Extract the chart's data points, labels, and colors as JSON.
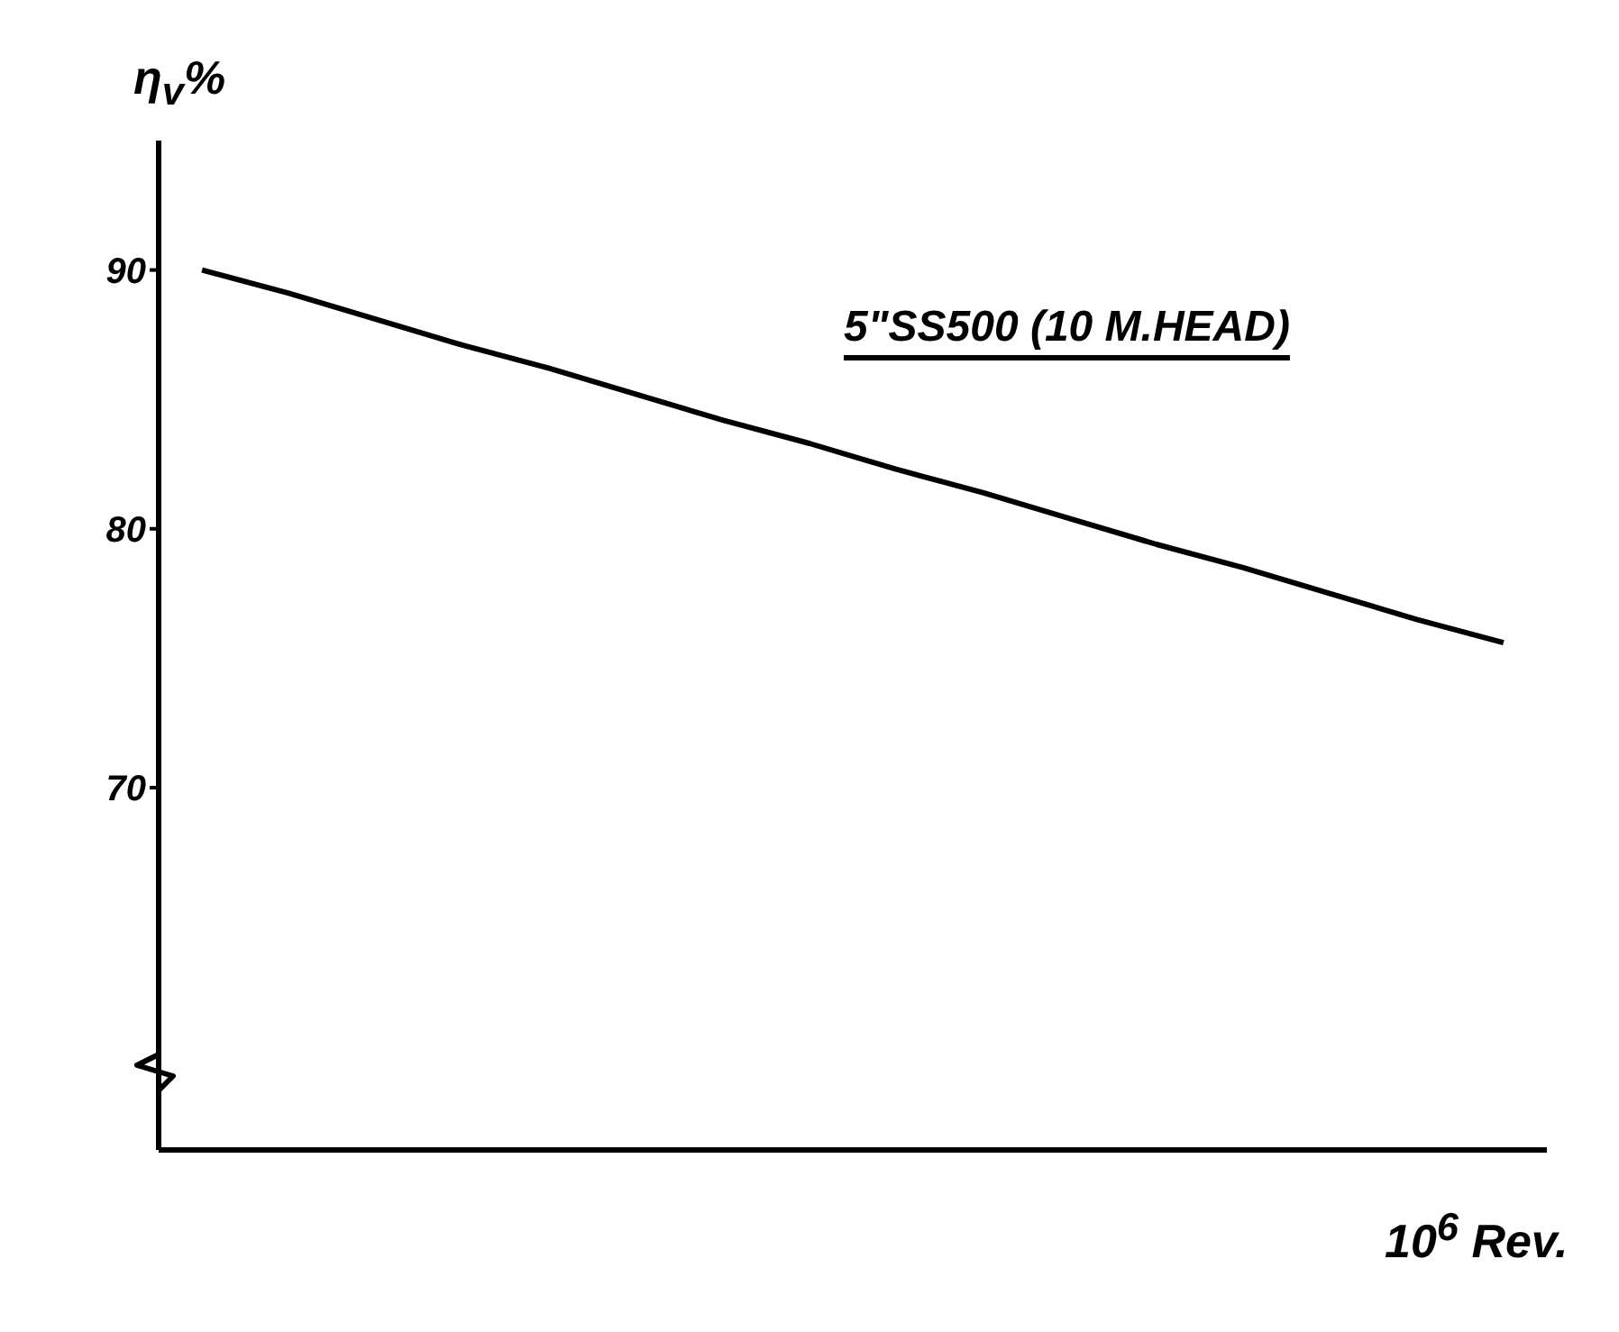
{
  "chart_data": {
    "type": "line",
    "ylabel": "η$_{v}$%",
    "xlabel": "10$^{6}$ Rev.",
    "categories": [
      null,
      null,
      null,
      null,
      null,
      null,
      null,
      null,
      null,
      null,
      null,
      null,
      null,
      null,
      null,
      null
    ],
    "series": [
      {
        "name": "5\"SS500 (10 M.HEAD)",
        "color": "#000000",
        "values": [
          90.0,
          89.1,
          88.1,
          87.1,
          86.2,
          85.2,
          84.2,
          83.3,
          82.3,
          81.4,
          80.4,
          79.4,
          78.5,
          77.5,
          76.5,
          75.6
        ]
      }
    ],
    "ylim": [
      56,
      95
    ],
    "yticks": [
      70,
      80,
      90
    ],
    "grid": false,
    "legend": false,
    "marker": "none",
    "line_style": "solid"
  }
}
